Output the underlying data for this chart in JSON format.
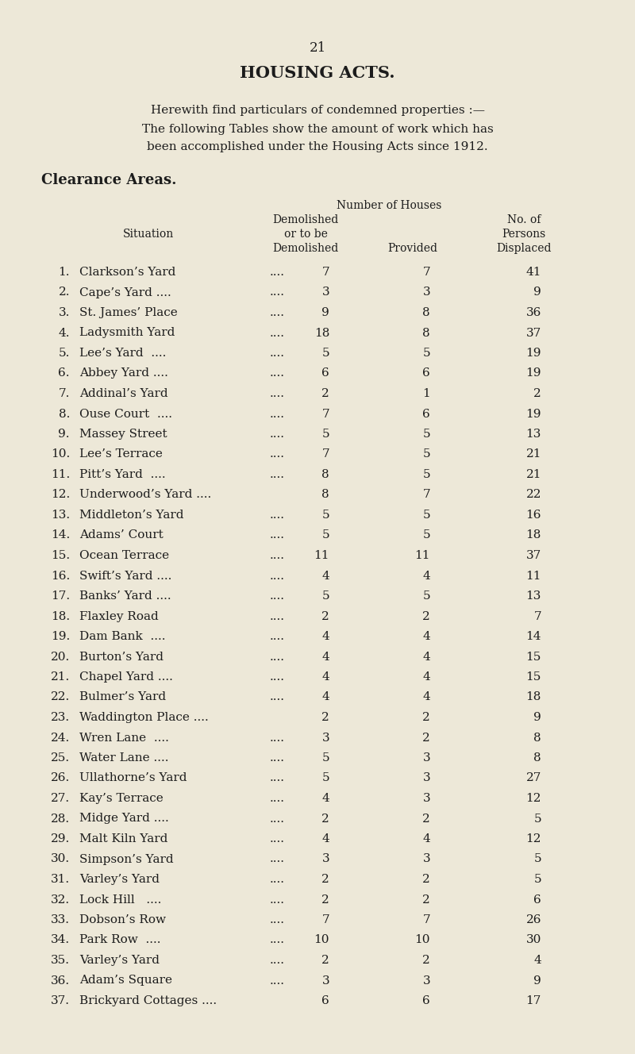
{
  "page_number": "21",
  "title": "HOUSING ACTS.",
  "intro_line1": "Herewith find particulars of condemned properties :—",
  "intro_line2": "The following Tables show the amount of work which has",
  "intro_line3": "been accomplished under the Housing Acts since 1912.",
  "section_title": "Clearance Areas.",
  "col_header_number_of_houses": "Number of Houses",
  "col_header_demolished_line1": "Demolished",
  "col_header_noof": "No. of",
  "col_header_ortobe": "or to be",
  "col_header_persons": "Persons",
  "col_header_situation": "Situation",
  "col_header_demolished": "Demolished",
  "col_header_provided": "Provided",
  "col_header_displaced": "Displaced",
  "bg_color": "#ede8d8",
  "text_color": "#1c1c1c",
  "rows": [
    {
      "num": "1.",
      "name": "Clarkson’s Yard",
      "dots": "....",
      "demolished": "7",
      "provided": "7",
      "displaced": "41"
    },
    {
      "num": "2.",
      "name": "Cape’s Yard ....",
      "dots": "....",
      "demolished": "3",
      "provided": "3",
      "displaced": "9"
    },
    {
      "num": "3.",
      "name": "St. James’ Place",
      "dots": "....",
      "demolished": "9",
      "provided": "8",
      "displaced": "36"
    },
    {
      "num": "4.",
      "name": "Ladysmith Yard",
      "dots": "....",
      "demolished": "18",
      "provided": "8",
      "displaced": "37"
    },
    {
      "num": "5.",
      "name": "Lee’s Yard  ....",
      "dots": "....",
      "demolished": "5",
      "provided": "5",
      "displaced": "19"
    },
    {
      "num": "6.",
      "name": "Abbey Yard ....",
      "dots": "....",
      "demolished": "6",
      "provided": "6",
      "displaced": "19"
    },
    {
      "num": "7.",
      "name": "Addinal’s Yard",
      "dots": "....",
      "demolished": "2",
      "provided": "1",
      "displaced": "2"
    },
    {
      "num": "8.",
      "name": "Ouse Court  ....",
      "dots": "....",
      "demolished": "7",
      "provided": "6",
      "displaced": "19"
    },
    {
      "num": "9.",
      "name": "Massey Street",
      "dots": "....",
      "demolished": "5",
      "provided": "5",
      "displaced": "13"
    },
    {
      "num": "10.",
      "name": "Lee’s Terrace",
      "dots": "....",
      "demolished": "7",
      "provided": "5",
      "displaced": "21"
    },
    {
      "num": "11.",
      "name": "Pitt’s Yard  ....",
      "dots": "....",
      "demolished": "8",
      "provided": "5",
      "displaced": "21"
    },
    {
      "num": "12.",
      "name": "Underwood’s Yard ....",
      "dots": "",
      "demolished": "8",
      "provided": "7",
      "displaced": "22"
    },
    {
      "num": "13.",
      "name": "Middleton’s Yard",
      "dots": "....",
      "demolished": "5",
      "provided": "5",
      "displaced": "16"
    },
    {
      "num": "14.",
      "name": "Adams’ Court",
      "dots": "....",
      "demolished": "5",
      "provided": "5",
      "displaced": "18"
    },
    {
      "num": "15.",
      "name": "Ocean Terrace",
      "dots": "....",
      "demolished": "11",
      "provided": "11",
      "displaced": "37"
    },
    {
      "num": "16.",
      "name": "Swift’s Yard ....",
      "dots": "....",
      "demolished": "4",
      "provided": "4",
      "displaced": "11"
    },
    {
      "num": "17.",
      "name": "Banks’ Yard ....",
      "dots": "....",
      "demolished": "5",
      "provided": "5",
      "displaced": "13"
    },
    {
      "num": "18.",
      "name": "Flaxley Road",
      "dots": "....",
      "demolished": "2",
      "provided": "2",
      "displaced": "7"
    },
    {
      "num": "19.",
      "name": "Dam Bank  ....",
      "dots": "....",
      "demolished": "4",
      "provided": "4",
      "displaced": "14"
    },
    {
      "num": "20.",
      "name": "Burton’s Yard",
      "dots": "....",
      "demolished": "4",
      "provided": "4",
      "displaced": "15"
    },
    {
      "num": "21.",
      "name": "Chapel Yard ....",
      "dots": "....",
      "demolished": "4",
      "provided": "4",
      "displaced": "15"
    },
    {
      "num": "22.",
      "name": "Bulmer’s Yard",
      "dots": "....",
      "demolished": "4",
      "provided": "4",
      "displaced": "18"
    },
    {
      "num": "23.",
      "name": "Waddington Place ....",
      "dots": "",
      "demolished": "2",
      "provided": "2",
      "displaced": "9"
    },
    {
      "num": "24.",
      "name": "Wren Lane  ....",
      "dots": "....",
      "demolished": "3",
      "provided": "2",
      "displaced": "8"
    },
    {
      "num": "25.",
      "name": "Water Lane ....",
      "dots": "....",
      "demolished": "5",
      "provided": "3",
      "displaced": "8"
    },
    {
      "num": "26.",
      "name": "Ullathorne’s Yard",
      "dots": "....",
      "demolished": "5",
      "provided": "3",
      "displaced": "27"
    },
    {
      "num": "27.",
      "name": "Kay’s Terrace",
      "dots": "....",
      "demolished": "4",
      "provided": "3",
      "displaced": "12"
    },
    {
      "num": "28.",
      "name": "Midge Yard ....",
      "dots": "....",
      "demolished": "2",
      "provided": "2",
      "displaced": "5"
    },
    {
      "num": "29.",
      "name": "Malt Kiln Yard",
      "dots": "....",
      "demolished": "4",
      "provided": "4",
      "displaced": "12"
    },
    {
      "num": "30.",
      "name": "Simpson’s Yard",
      "dots": "....",
      "demolished": "3",
      "provided": "3",
      "displaced": "5"
    },
    {
      "num": "31.",
      "name": "Varley’s Yard",
      "dots": "....",
      "demolished": "2",
      "provided": "2",
      "displaced": "5"
    },
    {
      "num": "32.",
      "name": "Lock Hill   ....",
      "dots": "....",
      "demolished": "2",
      "provided": "2",
      "displaced": "6"
    },
    {
      "num": "33.",
      "name": "Dobson’s Row",
      "dots": "....",
      "demolished": "7",
      "provided": "7",
      "displaced": "26"
    },
    {
      "num": "34.",
      "name": "Park Row  ....",
      "dots": "....",
      "demolished": "10",
      "provided": "10",
      "displaced": "30"
    },
    {
      "num": "35.",
      "name": "Varley’s Yard",
      "dots": "....",
      "demolished": "2",
      "provided": "2",
      "displaced": "4"
    },
    {
      "num": "36.",
      "name": "Adam’s Square",
      "dots": "....",
      "demolished": "3",
      "provided": "3",
      "displaced": "9"
    },
    {
      "num": "37.",
      "name": "Brickyard Cottages ....",
      "dots": "",
      "demolished": "6",
      "provided": "6",
      "displaced": "17"
    }
  ]
}
